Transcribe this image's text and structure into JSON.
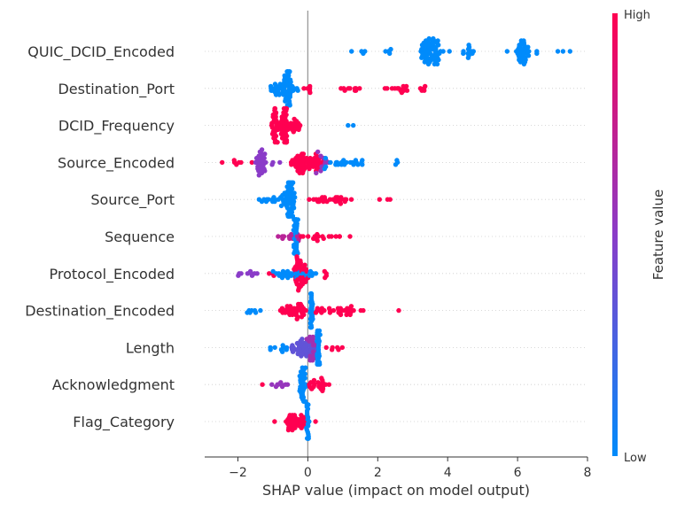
{
  "chart_data": {
    "type": "scatter",
    "subtype": "shap-beeswarm",
    "xlabel": "SHAP value (impact on model output)",
    "xlim": [
      -2.95,
      8
    ],
    "xticks": [
      -2,
      0,
      2,
      4,
      6,
      8
    ],
    "xtick_labels": [
      "−2",
      "0",
      "2",
      "4",
      "6",
      "8"
    ],
    "colorbar": {
      "label": "Feature value",
      "high": "High",
      "low": "Low",
      "low_color": "#008bfb",
      "mid_color": "#8a3cc8",
      "high_color": "#ff0051"
    },
    "features": [
      {
        "name": "QUIC_DCID_Encoded",
        "clusters": [
          {
            "x": 1.25,
            "w": 0,
            "n": 1,
            "v": 0
          },
          {
            "x": 1.6,
            "w": 0.1,
            "n": 3,
            "v": 0
          },
          {
            "x": 2.3,
            "w": 0.25,
            "n": 5,
            "v": 0
          },
          {
            "x": 3.5,
            "w": 0.6,
            "n": 70,
            "v": 0
          },
          {
            "x": 4.05,
            "w": 0,
            "n": 1,
            "v": 0
          },
          {
            "x": 4.55,
            "w": 0.4,
            "n": 12,
            "v": 0
          },
          {
            "x": 5.7,
            "w": 0,
            "n": 1,
            "v": 0
          },
          {
            "x": 6.15,
            "w": 0.4,
            "n": 38,
            "v": 0
          },
          {
            "x": 6.55,
            "w": 0,
            "n": 2,
            "v": 0
          },
          {
            "x": 7.15,
            "w": 0,
            "n": 1,
            "v": 0
          },
          {
            "x": 7.3,
            "w": 0,
            "n": 1,
            "v": 0
          },
          {
            "x": 7.5,
            "w": 0,
            "n": 1,
            "v": 0
          }
        ]
      },
      {
        "name": "Destination_Port",
        "clusters": [
          {
            "x": -0.8,
            "w": 1.0,
            "n": 40,
            "v": 0
          },
          {
            "x": -0.6,
            "w": 0.25,
            "n": 35,
            "v": 0
          },
          {
            "x": 0.05,
            "w": 0.3,
            "n": 6,
            "v": 1
          },
          {
            "x": 1.25,
            "w": 0.55,
            "n": 10,
            "v": 1
          },
          {
            "x": 2.5,
            "w": 0.8,
            "n": 14,
            "v": 1
          },
          {
            "x": 3.3,
            "w": 0.2,
            "n": 5,
            "v": 1
          }
        ]
      },
      {
        "name": "DCID_Frequency",
        "clusters": [
          {
            "x": -0.65,
            "w": 1.0,
            "n": 45,
            "v": 1
          },
          {
            "x": -0.95,
            "w": 0.15,
            "n": 25,
            "v": 1
          },
          {
            "x": -0.65,
            "w": 0.15,
            "n": 25,
            "v": 1
          },
          {
            "x": 1.15,
            "w": 0,
            "n": 1,
            "v": 0
          },
          {
            "x": 1.3,
            "w": 0,
            "n": 1,
            "v": 0
          }
        ]
      },
      {
        "name": "Source_Encoded",
        "clusters": [
          {
            "x": -2.45,
            "w": 0,
            "n": 1,
            "v": 1
          },
          {
            "x": -2.05,
            "w": 0.25,
            "n": 5,
            "v": 1
          },
          {
            "x": -1.6,
            "w": 0,
            "n": 1,
            "v": 1
          },
          {
            "x": -1.35,
            "w": 0.3,
            "n": 32,
            "v": 0.5
          },
          {
            "x": -1.0,
            "w": 0.1,
            "n": 2,
            "v": 0.5
          },
          {
            "x": -0.8,
            "w": 0,
            "n": 1,
            "v": 0.5
          },
          {
            "x": 0.0,
            "w": 0.9,
            "n": 70,
            "v": 1
          },
          {
            "x": 0.4,
            "w": 0.4,
            "n": 10,
            "v": 0.55
          },
          {
            "x": 1.0,
            "w": 1.0,
            "n": 20,
            "v": 0
          },
          {
            "x": 1.55,
            "w": 0.1,
            "n": 3,
            "v": 0
          },
          {
            "x": 2.55,
            "w": 0.15,
            "n": 3,
            "v": 0
          }
        ]
      },
      {
        "name": "Source_Port",
        "clusters": [
          {
            "x": -0.85,
            "w": 1.1,
            "n": 30,
            "v": 0
          },
          {
            "x": -0.5,
            "w": 0.2,
            "n": 45,
            "v": 0
          },
          {
            "x": 0.7,
            "w": 1.6,
            "n": 28,
            "v": 1
          },
          {
            "x": 2.05,
            "w": 0,
            "n": 1,
            "v": 1
          },
          {
            "x": 2.3,
            "w": 0.1,
            "n": 2,
            "v": 1
          }
        ]
      },
      {
        "name": "Sequence",
        "clusters": [
          {
            "x": -0.5,
            "w": 0.8,
            "n": 14,
            "v": 0.7
          },
          {
            "x": -0.35,
            "w": 0.12,
            "n": 45,
            "v": 0
          },
          {
            "x": 0.5,
            "w": 1.3,
            "n": 18,
            "v": 1
          }
        ]
      },
      {
        "name": "Protocol_Encoded",
        "clusters": [
          {
            "x": -1.75,
            "w": 1.1,
            "n": 9,
            "v": 0.5
          },
          {
            "x": -1.0,
            "w": 0.2,
            "n": 3,
            "v": 1
          },
          {
            "x": -0.4,
            "w": 1.2,
            "n": 35,
            "v": 0
          },
          {
            "x": -0.2,
            "w": 0.4,
            "n": 40,
            "v": 1
          },
          {
            "x": 0.5,
            "w": 0.1,
            "n": 4,
            "v": 1
          }
        ]
      },
      {
        "name": "Destination_Encoded",
        "clusters": [
          {
            "x": -1.5,
            "w": 0.6,
            "n": 7,
            "v": 0
          },
          {
            "x": -0.4,
            "w": 0.8,
            "n": 40,
            "v": 1
          },
          {
            "x": 0.1,
            "w": 0.08,
            "n": 30,
            "v": 0
          },
          {
            "x": 0.8,
            "w": 1.4,
            "n": 32,
            "v": 1
          },
          {
            "x": 2.6,
            "w": 0,
            "n": 1,
            "v": 1
          }
        ]
      },
      {
        "name": "Length",
        "clusters": [
          {
            "x": -0.85,
            "w": 0.5,
            "n": 9,
            "v": 0
          },
          {
            "x": -0.1,
            "w": 0.8,
            "n": 45,
            "v": 0.35
          },
          {
            "x": 0.1,
            "w": 0.3,
            "n": 20,
            "v": 0.6
          },
          {
            "x": 0.3,
            "w": 0.1,
            "n": 30,
            "v": 0
          },
          {
            "x": 0.85,
            "w": 0.9,
            "n": 6,
            "v": 1
          }
        ]
      },
      {
        "name": "Acknowledgment",
        "clusters": [
          {
            "x": -1.3,
            "w": 0,
            "n": 1,
            "v": 1
          },
          {
            "x": -0.85,
            "w": 0.6,
            "n": 9,
            "v": 0.55
          },
          {
            "x": -0.15,
            "w": 0.2,
            "n": 35,
            "v": 0
          },
          {
            "x": 0.3,
            "w": 0.6,
            "n": 22,
            "v": 1
          }
        ]
      },
      {
        "name": "Flag_Category",
        "clusters": [
          {
            "x": -0.95,
            "w": 0,
            "n": 1,
            "v": 1
          },
          {
            "x": -0.35,
            "w": 0.65,
            "n": 40,
            "v": 1
          },
          {
            "x": 0.0,
            "w": 0.08,
            "n": 28,
            "v": 0
          },
          {
            "x": 0.22,
            "w": 0,
            "n": 1,
            "v": 1
          }
        ]
      }
    ]
  }
}
